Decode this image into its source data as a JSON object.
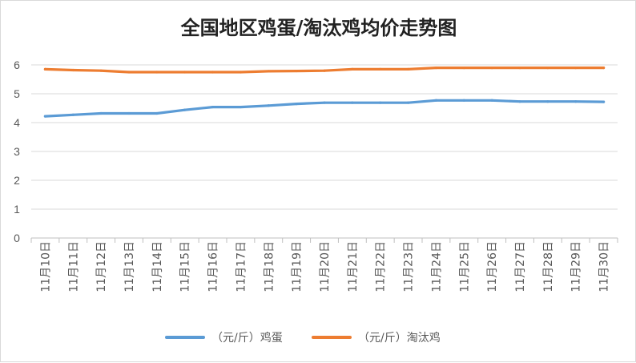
{
  "chart_data": {
    "type": "line",
    "title": "全国地区鸡蛋/淘汰鸡均价走势图",
    "categories": [
      "11月10日",
      "11月11日",
      "11月12日",
      "11月13日",
      "11月14日",
      "11月15日",
      "11月16日",
      "11月17日",
      "11月18日",
      "11月19日",
      "11月20日",
      "11月21日",
      "11月22日",
      "11月23日",
      "11月24日",
      "11月25日",
      "11月26日",
      "11月27日",
      "11月28日",
      "11月29日",
      "11月30日"
    ],
    "ylim": [
      0,
      6
    ],
    "yticks": [
      "0",
      "1",
      "2",
      "3",
      "4",
      "5",
      "6"
    ],
    "grid": true,
    "legend_position": "bottom",
    "series": [
      {
        "name": "（元/斤）鸡蛋",
        "color": "#5b9bd5",
        "values": [
          4.22,
          4.27,
          4.32,
          4.32,
          4.32,
          4.44,
          4.54,
          4.54,
          4.59,
          4.65,
          4.69,
          4.69,
          4.69,
          4.69,
          4.77,
          4.77,
          4.77,
          4.73,
          4.73,
          4.73,
          4.72
        ]
      },
      {
        "name": "（元/斤）淘汰鸡",
        "color": "#ed7d31",
        "values": [
          5.85,
          5.82,
          5.8,
          5.75,
          5.75,
          5.75,
          5.75,
          5.75,
          5.78,
          5.79,
          5.8,
          5.85,
          5.85,
          5.85,
          5.9,
          5.9,
          5.9,
          5.9,
          5.9,
          5.9,
          5.9
        ]
      }
    ]
  }
}
